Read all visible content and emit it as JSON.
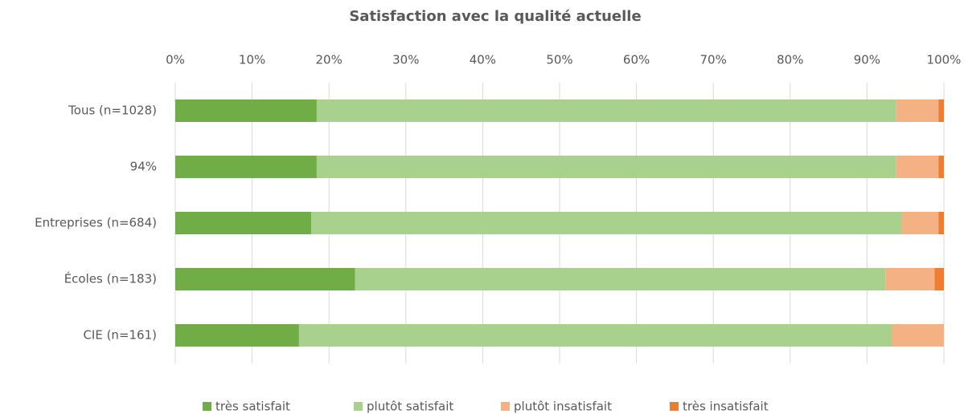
{
  "chart_data": {
    "type": "stacked_bar_horizontal",
    "title": "Satisfaction avec la qualité actuelle",
    "categories": [
      "Tous (n=1028)",
      "94%",
      "Entreprises (n=684)",
      "Écoles (n=183)",
      "CIE (n=161)"
    ],
    "series": [
      {
        "name": "très satisfait",
        "color": "#70ad47",
        "values": [
          18.4,
          18.4,
          17.7,
          23.4,
          16.1
        ]
      },
      {
        "name": "plutôt satisfait",
        "color": "#a9d18e",
        "values": [
          75.4,
          75.4,
          76.8,
          69.0,
          77.1
        ]
      },
      {
        "name": "plutôt insatisfait",
        "color": "#f4b183",
        "values": [
          5.5,
          5.5,
          4.8,
          6.4,
          6.8
        ]
      },
      {
        "name": "très insatisfait",
        "color": "#ed7d31",
        "values": [
          0.7,
          0.7,
          0.7,
          1.2,
          0
        ]
      }
    ],
    "xlim": [
      0,
      100
    ],
    "xticks": [
      {
        "value": 0,
        "label": "0%"
      },
      {
        "value": 10,
        "label": "10%"
      },
      {
        "value": 20,
        "label": "20%"
      },
      {
        "value": 30,
        "label": "30%"
      },
      {
        "value": 40,
        "label": "40%"
      },
      {
        "value": 50,
        "label": "50%"
      },
      {
        "value": 60,
        "label": "60%"
      },
      {
        "value": 70,
        "label": "70%"
      },
      {
        "value": 80,
        "label": "80%"
      },
      {
        "value": 90,
        "label": "90%"
      },
      {
        "value": 100,
        "label": "100%"
      }
    ],
    "grid": true,
    "legend": "bottom"
  }
}
